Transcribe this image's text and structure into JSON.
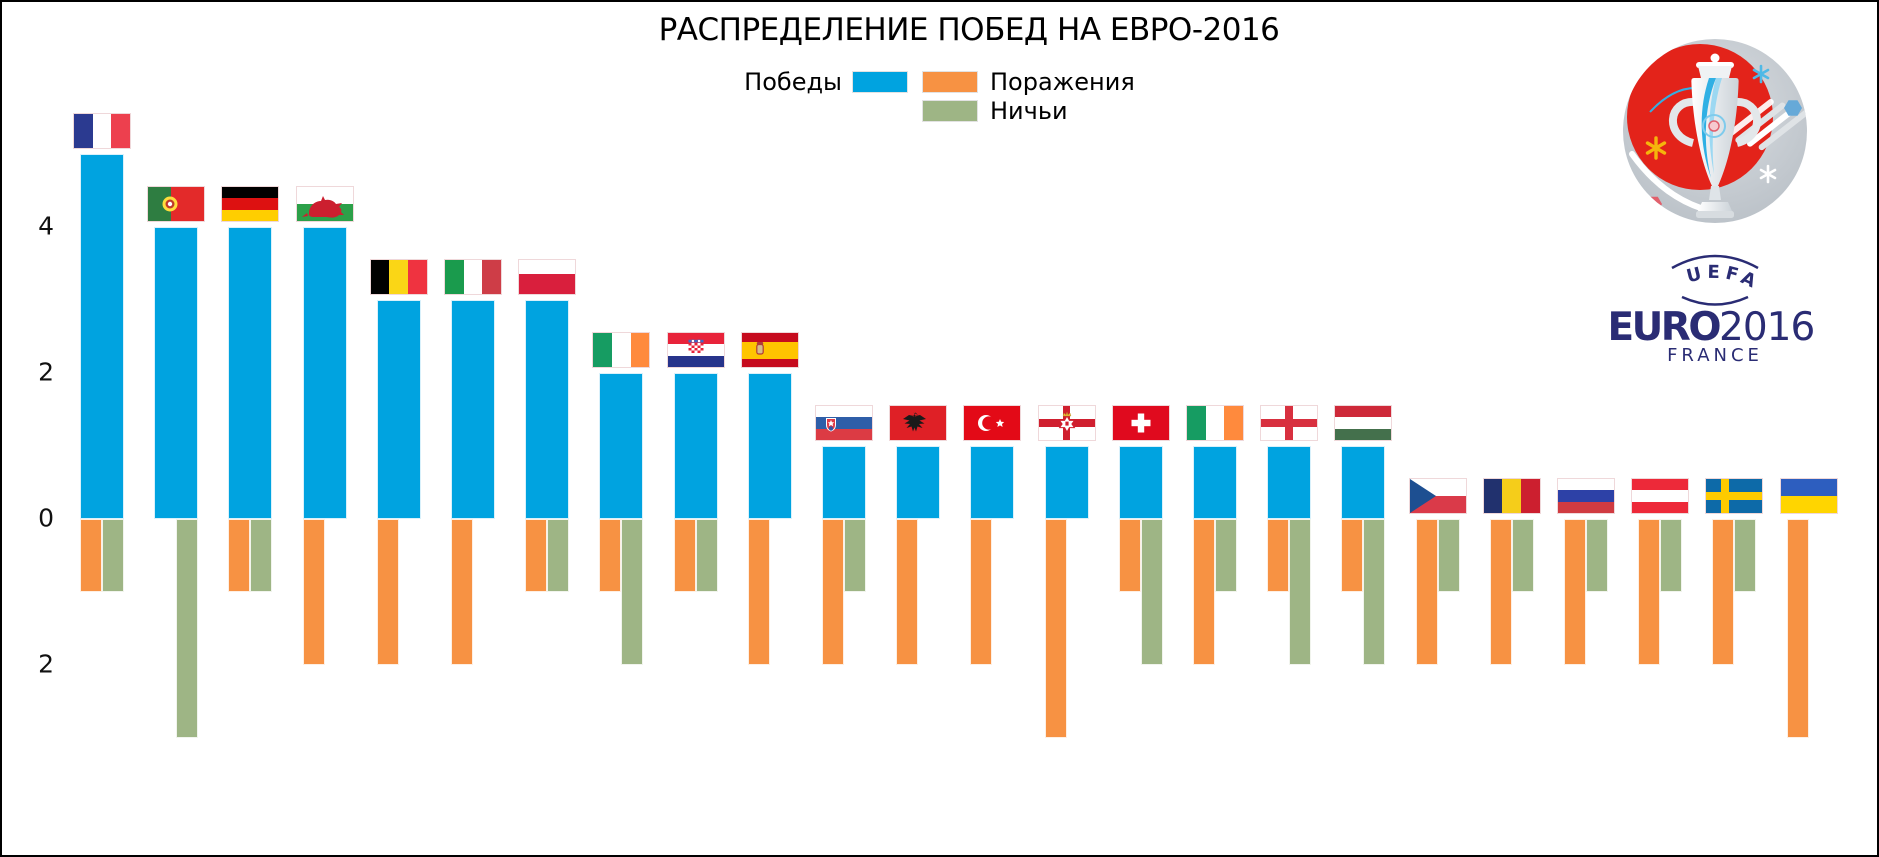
{
  "title": "РАСПРЕДЕЛЕНИЕ ПОБЕД НА ЕВРО-2016",
  "legend": {
    "wins": "Победы",
    "losses": "Поражения",
    "draws": "Ничьи"
  },
  "logo": {
    "uefa": "UEFA",
    "euro": "EURO",
    "year": "2016",
    "country": "FRANCE",
    "navy": "#2A2C74",
    "red": "#E3231A",
    "silver": "#C3CAD0"
  },
  "page": {
    "background": "#FFFFFF",
    "frame_border": "#000000"
  },
  "chart_data": {
    "type": "bar",
    "title": "РАСПРЕДЕЛЕНИЕ ПОБЕД НА ЕВРО-2016",
    "orientation": "vertical-diverging",
    "grid": false,
    "legend_position": "top-center",
    "x_labels": "country-flags",
    "ylim": [
      -3.5,
      5.6
    ],
    "y_ticks": [
      {
        "label": "4",
        "value": 4
      },
      {
        "label": "2",
        "value": 2
      },
      {
        "label": "0",
        "value": 0
      },
      {
        "label": "2",
        "value": -2
      }
    ],
    "categories": [
      "France",
      "Portugal",
      "Germany",
      "Wales",
      "Belgium",
      "Italy",
      "Poland",
      "Iceland",
      "Croatia",
      "Spain",
      "Slovakia",
      "Albania",
      "Turkey",
      "Northern Ireland",
      "Switzerland",
      "Ireland",
      "England",
      "Hungary",
      "Czech Republic",
      "Romania",
      "Russia",
      "Austria",
      "Sweden",
      "Ukraine"
    ],
    "series": [
      {
        "name": "Победы",
        "color": "#00A3E0",
        "values": [
          5,
          4,
          4,
          4,
          3,
          3,
          3,
          2,
          2,
          2,
          1,
          1,
          1,
          1,
          1,
          1,
          1,
          1,
          0,
          0,
          0,
          0,
          0,
          0
        ]
      },
      {
        "name": "Поражения",
        "color": "#F79243",
        "values": [
          -1,
          0,
          -1,
          -2,
          -2,
          -2,
          -1,
          -1,
          -1,
          -2,
          -2,
          -2,
          -2,
          -3,
          -1,
          -2,
          -1,
          -1,
          -2,
          -2,
          -2,
          -2,
          -2,
          -3
        ]
      },
      {
        "name": "Ничьи",
        "color": "#9EB585",
        "values": [
          -1,
          -3,
          -1,
          0,
          0,
          0,
          -1,
          -2,
          -1,
          0,
          -1,
          0,
          0,
          0,
          -2,
          -1,
          -2,
          -2,
          -1,
          -1,
          -1,
          -1,
          -1,
          0
        ]
      }
    ]
  },
  "flags": [
    {
      "country": "France",
      "kind": "v",
      "colors": [
        "#2B3A90",
        "#FFFFFF",
        "#ED404E"
      ]
    },
    {
      "country": "Portugal",
      "kind": "v",
      "colors": [
        "#2E7D41",
        "#E32A2A"
      ],
      "widths": [
        40,
        60
      ],
      "emblem": "portugal-crest"
    },
    {
      "country": "Germany",
      "kind": "h",
      "colors": [
        "#000000",
        "#DD1111",
        "#FFCE00"
      ]
    },
    {
      "country": "Wales",
      "kind": "h",
      "colors": [
        "#FFFFFF",
        "#2CA049"
      ],
      "emblem": "welsh-dragon"
    },
    {
      "country": "Belgium",
      "kind": "v",
      "colors": [
        "#000000",
        "#FAD616",
        "#EF3340"
      ]
    },
    {
      "country": "Italy",
      "kind": "v",
      "colors": [
        "#1A9B4D",
        "#FFFFFF",
        "#CE3D47"
      ]
    },
    {
      "country": "Poland",
      "kind": "h",
      "colors": [
        "#FFFFFF",
        "#D91F3D"
      ],
      "widths": [
        42,
        58
      ]
    },
    {
      "country": "Iceland",
      "kind": "v",
      "colors": [
        "#169C62",
        "#FFFFFF",
        "#FF8A3D"
      ]
    },
    {
      "country": "Croatia",
      "kind": "h",
      "colors": [
        "#E8233A",
        "#FFFFFF",
        "#27348B"
      ],
      "emblem": "croatia-checker"
    },
    {
      "country": "Spain",
      "kind": "h",
      "colors": [
        "#C60B1E",
        "#FFC400",
        "#C60B1E"
      ],
      "widths": [
        25,
        50,
        25
      ],
      "emblem": "spain-crest"
    },
    {
      "country": "Slovakia",
      "kind": "h",
      "colors": [
        "#FFFFFF",
        "#2E5EA8",
        "#DC3B44"
      ],
      "emblem": "slovakia-crest"
    },
    {
      "country": "Albania",
      "kind": "solid",
      "colors": [
        "#DF2026"
      ],
      "emblem": "albania-eagle"
    },
    {
      "country": "Turkey",
      "kind": "solid",
      "colors": [
        "#E30A17"
      ],
      "emblem": "turkey-crescent-star"
    },
    {
      "country": "Northern Ireland",
      "kind": "cross",
      "colors": [
        "#FFFFFF",
        "#D01F2F"
      ],
      "emblem": "ulster-star-crown"
    },
    {
      "country": "Switzerland",
      "kind": "solid",
      "colors": [
        "#E00A1E"
      ],
      "emblem": "swiss-cross"
    },
    {
      "country": "Ireland",
      "kind": "v",
      "colors": [
        "#169C62",
        "#FFFFFF",
        "#FF8A3D"
      ]
    },
    {
      "country": "England",
      "kind": "cross",
      "colors": [
        "#FFFFFF",
        "#D8303F"
      ]
    },
    {
      "country": "Hungary",
      "kind": "h",
      "colors": [
        "#CE2939",
        "#FFFFFF",
        "#44704C"
      ]
    },
    {
      "country": "Czech Republic",
      "kind": "czech",
      "colors": [
        "#FFFFFF",
        "#DA3A49",
        "#1D4F91"
      ]
    },
    {
      "country": "Romania",
      "kind": "v",
      "colors": [
        "#21316E",
        "#F5CD1A",
        "#CC1F2F"
      ]
    },
    {
      "country": "Russia",
      "kind": "h",
      "colors": [
        "#FFFFFF",
        "#2D41A7",
        "#D03B41"
      ]
    },
    {
      "country": "Austria",
      "kind": "h",
      "colors": [
        "#ED2939",
        "#FFFFFF",
        "#ED2939"
      ]
    },
    {
      "country": "Sweden",
      "kind": "nordic",
      "colors": [
        "#0D6AA8",
        "#FECB00"
      ]
    },
    {
      "country": "Ukraine",
      "kind": "h",
      "colors": [
        "#2D5EBF",
        "#FFD500"
      ]
    }
  ]
}
